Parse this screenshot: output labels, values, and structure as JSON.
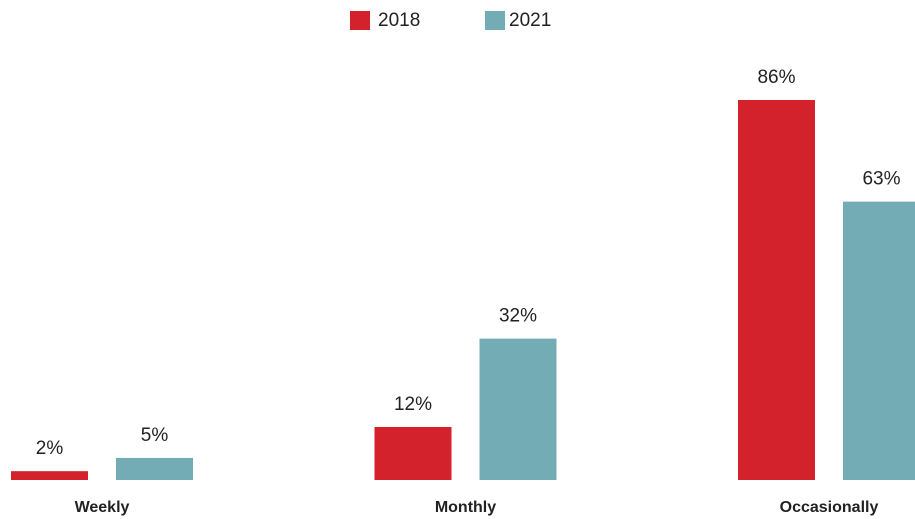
{
  "chart_data": {
    "type": "bar",
    "categories": [
      "Weekly",
      "Monthly",
      "Occasionally"
    ],
    "series": [
      {
        "name": "2018",
        "color": "#d3222b",
        "values": [
          2,
          12,
          86
        ],
        "value_labels": [
          "2%",
          "12%",
          "86%"
        ]
      },
      {
        "name": "2021",
        "color": "#74acb5",
        "values": [
          5,
          32,
          63
        ],
        "value_labels": [
          "5%",
          "32%",
          "63%"
        ]
      }
    ],
    "legend": "top"
  }
}
